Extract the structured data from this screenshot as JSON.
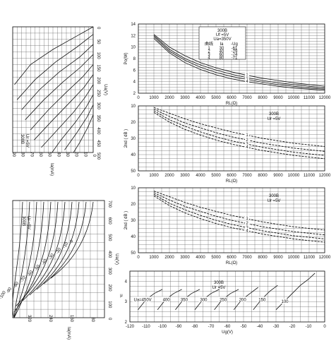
{
  "chart_data": [
    {
      "id": "Ia-Ua-upper",
      "type": "line",
      "title": "",
      "xlabel": "Ua(V)",
      "ylabel": "Ia(mA)",
      "tube_label": [
        "300B",
        "Ur =5V"
      ],
      "x_ticks": [
        "0",
        "50",
        "100",
        "150",
        "200",
        "250",
        "300",
        "350",
        "400",
        "450",
        "500"
      ],
      "y_ticks": [
        "90",
        "80",
        "70",
        "60",
        "50",
        "40",
        "30",
        "20",
        "10",
        "0"
      ],
      "series": [
        {
          "label": "0",
          "points": [
            [
              0,
              0
            ],
            [
              40,
              20
            ],
            [
              90,
              45
            ],
            [
              150,
              70
            ],
            [
              230,
              88
            ]
          ]
        },
        {
          "label": "-10",
          "points": [
            [
              30,
              0
            ],
            [
              80,
              18
            ],
            [
              140,
              42
            ],
            [
              210,
              65
            ],
            [
              290,
              85
            ]
          ]
        },
        {
          "label": "-20",
          "points": [
            [
              70,
              0
            ],
            [
              120,
              15
            ],
            [
              180,
              38
            ],
            [
              250,
              60
            ],
            [
              330,
              80
            ]
          ]
        },
        {
          "label": "-30",
          "points": [
            [
              110,
              0
            ],
            [
              160,
              14
            ],
            [
              220,
              34
            ],
            [
              290,
              55
            ],
            [
              370,
              76
            ]
          ]
        },
        {
          "label": "-40",
          "points": [
            [
              150,
              0
            ],
            [
              200,
              12
            ],
            [
              260,
              30
            ],
            [
              330,
              50
            ],
            [
              410,
              70
            ]
          ]
        },
        {
          "label": "-50",
          "points": [
            [
              190,
              0
            ],
            [
              240,
              10
            ],
            [
              300,
              26
            ],
            [
              370,
              45
            ],
            [
              450,
              66
            ]
          ]
        },
        {
          "label": "-60",
          "points": [
            [
              230,
              0
            ],
            [
              280,
              9
            ],
            [
              340,
              22
            ],
            [
              410,
              40
            ],
            [
              480,
              58
            ]
          ]
        },
        {
          "label": "-70",
          "points": [
            [
              270,
              0
            ],
            [
              320,
              8
            ],
            [
              380,
              20
            ],
            [
              450,
              36
            ],
            [
              500,
              46
            ]
          ]
        },
        {
          "label": "-80",
          "points": [
            [
              310,
              0
            ],
            [
              360,
              7
            ],
            [
              420,
              18
            ],
            [
              490,
              32
            ]
          ]
        },
        {
          "label": "-90",
          "points": [
            [
              350,
              0
            ],
            [
              400,
              6
            ],
            [
              460,
              15
            ],
            [
              500,
              22
            ]
          ]
        }
      ]
    },
    {
      "id": "Ia-Ua-lower",
      "type": "line",
      "title": "",
      "xlabel": "Ua(V)",
      "ylabel": "Ia(mA)",
      "tube_label": [
        "300B",
        "Ur =5V"
      ],
      "x_ticks": [
        "700",
        "600",
        "500",
        "400",
        "300",
        "200",
        "100",
        "0"
      ],
      "y_ticks": [
        "320",
        "240",
        "160",
        "80"
      ],
      "curve_labels": [
        "0",
        "-10",
        "-20",
        "-30",
        "-40",
        "-50",
        "-60",
        "-70",
        "-80",
        "-90",
        "-100"
      ]
    },
    {
      "id": "Pa-RL",
      "type": "line",
      "title": "",
      "xlabel": "RL(Ω)",
      "ylabel": "Po(W)",
      "x_ticks": [
        "0",
        "1000",
        "2000",
        "3000",
        "4000",
        "5000",
        "6000",
        "7000",
        "8000",
        "9000",
        "10000",
        "11000",
        "12000"
      ],
      "y_ticks": [
        "14",
        "12",
        "10",
        "8",
        "6",
        "4",
        "2"
      ],
      "xlim": [
        0,
        12000
      ],
      "ylim": [
        2,
        14
      ],
      "legend": {
        "header": [
          "300B",
          "Uf =5V",
          "Ua=350V"
        ],
        "columns": [
          "曲线",
          "Ia",
          "-Ug"
        ],
        "rows": [
          [
            "1",
            "30",
            "-61"
          ],
          [
            "2",
            "40",
            "-79"
          ],
          [
            "3",
            "60",
            "-74"
          ],
          [
            "4",
            "80",
            "-71"
          ]
        ]
      },
      "series": [
        {
          "name": "1",
          "x": [
            1000,
            2000,
            3000,
            4000,
            5000,
            6000,
            7000,
            8000,
            9000,
            10000,
            11000,
            12000
          ],
          "y": [
            12.2,
            10.0,
            8.5,
            7.3,
            6.4,
            5.7,
            5.1,
            4.6,
            4.2,
            3.8,
            3.5,
            3.2
          ]
        },
        {
          "name": "2",
          "x": [
            1000,
            2000,
            3000,
            4000,
            5000,
            6000,
            7000,
            8000,
            9000,
            10000,
            11000,
            12000
          ],
          "y": [
            12.0,
            9.6,
            8.0,
            6.9,
            6.0,
            5.3,
            4.7,
            4.2,
            3.8,
            3.5,
            3.2,
            2.9
          ]
        },
        {
          "name": "3",
          "x": [
            1000,
            2000,
            3000,
            4000,
            5000,
            6000,
            7000,
            8000,
            9000,
            10000,
            11000,
            12000
          ],
          "y": [
            11.8,
            9.3,
            7.7,
            6.5,
            5.6,
            4.9,
            4.4,
            3.9,
            3.5,
            3.2,
            2.9,
            2.7
          ]
        },
        {
          "name": "4",
          "x": [
            1000,
            2000,
            3000,
            4000,
            5000,
            6000,
            7000,
            8000,
            9000,
            10000,
            11000,
            12000
          ],
          "y": [
            11.5,
            9.0,
            7.3,
            6.1,
            5.2,
            4.5,
            4.0,
            3.6,
            3.2,
            2.9,
            2.7,
            2.5
          ]
        }
      ]
    },
    {
      "id": "2nd-RL-a",
      "type": "line",
      "title": "",
      "xlabel": "RL(Ω)",
      "ylabel": "2nd ( dB )",
      "annotation": [
        "300B",
        "Ur =5V"
      ],
      "x_ticks": [
        "0",
        "1000",
        "2000",
        "3000",
        "4000",
        "5000",
        "6000",
        "7000",
        "8000",
        "9000",
        "10000",
        "11000",
        "12000"
      ],
      "y_ticks": [
        "10",
        "20",
        "30",
        "40",
        "50"
      ],
      "xlim": [
        0,
        12000
      ],
      "ylim": [
        10,
        50
      ],
      "series": [
        {
          "name": "1",
          "x": [
            1000,
            2000,
            3000,
            4000,
            5000,
            6000,
            7000,
            8000,
            9000,
            10000,
            11000,
            12000
          ],
          "y": [
            11,
            14.5,
            18,
            21,
            23.5,
            26,
            28,
            30,
            31.5,
            33,
            34,
            35
          ]
        },
        {
          "name": "2",
          "x": [
            1000,
            2000,
            3000,
            4000,
            5000,
            6000,
            7000,
            8000,
            9000,
            10000,
            11000,
            12000
          ],
          "y": [
            12,
            16.5,
            20.5,
            23.5,
            26.5,
            29,
            31,
            33,
            34.5,
            36,
            37,
            38
          ]
        },
        {
          "name": "3",
          "x": [
            1000,
            2000,
            3000,
            4000,
            5000,
            6000,
            7000,
            8000,
            9000,
            10000,
            11000,
            12000
          ],
          "y": [
            13,
            18.5,
            22.5,
            26,
            29,
            31.5,
            33.5,
            35.5,
            37,
            38.5,
            39.5,
            40.5
          ]
        },
        {
          "name": "4",
          "x": [
            1000,
            2000,
            3000,
            4000,
            5000,
            6000,
            7000,
            8000,
            9000,
            10000,
            11000,
            12000
          ],
          "y": [
            14,
            20,
            24.5,
            28,
            31,
            33.5,
            35.5,
            37.5,
            39,
            40.5,
            41.5,
            42.5
          ]
        }
      ]
    },
    {
      "id": "2nd-RL-b",
      "type": "line",
      "title": "",
      "xlabel": "RL(Ω)",
      "ylabel": "2nd ( dB )",
      "annotation": [
        "300B",
        "Ur =5V"
      ],
      "x_ticks": [
        "0",
        "1000",
        "2000",
        "3000",
        "4000",
        "5000",
        "6000",
        "7000",
        "8000",
        "9000",
        "10000",
        "11000",
        "12000"
      ],
      "y_ticks": [
        "10",
        "20",
        "30",
        "40",
        "50"
      ],
      "xlim": [
        0,
        12000
      ],
      "ylim": [
        10,
        50
      ],
      "series": [
        {
          "name": "1",
          "x": [
            1000,
            2000,
            3000,
            4000,
            5000,
            6000,
            7000,
            8000,
            9000,
            10000,
            11000,
            12000
          ],
          "y": [
            12,
            15.5,
            19,
            22,
            24.5,
            27,
            29,
            31,
            32.5,
            34,
            35,
            36
          ]
        },
        {
          "name": "2",
          "x": [
            1000,
            2000,
            3000,
            4000,
            5000,
            6000,
            7000,
            8000,
            9000,
            10000,
            11000,
            12000
          ],
          "y": [
            13,
            17.5,
            21.5,
            24.5,
            27.5,
            30,
            32,
            34,
            35.5,
            37,
            38,
            39
          ]
        },
        {
          "name": "3",
          "x": [
            1000,
            2000,
            3000,
            4000,
            5000,
            6000,
            7000,
            8000,
            9000,
            10000,
            11000,
            12000
          ],
          "y": [
            14,
            19.5,
            23.5,
            27,
            30,
            32.5,
            34.5,
            36.5,
            38,
            39.5,
            40.5,
            41.5
          ]
        },
        {
          "name": "4",
          "x": [
            1000,
            2000,
            3000,
            4000,
            5000,
            6000,
            7000,
            8000,
            9000,
            10000,
            11000,
            12000
          ],
          "y": [
            15,
            21,
            25.5,
            29,
            32,
            34.5,
            36.5,
            38.5,
            40,
            41.5,
            42.5,
            43.5
          ]
        }
      ]
    },
    {
      "id": "mu-Ug",
      "type": "line",
      "title": "",
      "xlabel": "Ug(V)",
      "ylabel": "μ",
      "annotation": [
        "300B",
        "Ur =5V"
      ],
      "x_ticks": [
        "-120",
        "-110",
        "-100",
        "-90",
        "-80",
        "-70",
        "-60",
        "-50",
        "-40",
        "-30",
        "-20",
        "-10",
        "0"
      ],
      "y_ticks": [
        "4",
        "3",
        "2"
      ],
      "xlim": [
        -120,
        0
      ],
      "ylim": [
        2,
        4.5
      ],
      "series": [
        {
          "name": "Ua=450V",
          "x": [
            -115,
            -110,
            -105,
            -100
          ],
          "y": [
            2.6,
            3.1,
            3.4,
            3.6
          ]
        },
        {
          "name": "400",
          "x": [
            -103,
            -98,
            -93,
            -88
          ],
          "y": [
            2.6,
            3.1,
            3.4,
            3.6
          ]
        },
        {
          "name": "350",
          "x": [
            -92,
            -87,
            -82,
            -77
          ],
          "y": [
            2.6,
            3.1,
            3.4,
            3.6
          ]
        },
        {
          "name": "300",
          "x": [
            -80,
            -75,
            -70,
            -65
          ],
          "y": [
            2.6,
            3.1,
            3.4,
            3.6
          ]
        },
        {
          "name": "250",
          "x": [
            -68,
            -63,
            -58,
            -53
          ],
          "y": [
            2.6,
            3.1,
            3.4,
            3.6
          ]
        },
        {
          "name": "200",
          "x": [
            -56,
            -51,
            -46,
            -41
          ],
          "y": [
            2.6,
            3.1,
            3.4,
            3.7
          ]
        },
        {
          "name": "150",
          "x": [
            -44,
            -39,
            -34,
            -29
          ],
          "y": [
            2.6,
            3.1,
            3.5,
            3.8
          ]
        },
        {
          "name": "100",
          "x": [
            -30,
            -25,
            -20,
            -15,
            -10,
            -6
          ],
          "y": [
            2.6,
            3.0,
            3.4,
            3.8,
            4.1,
            4.4
          ]
        }
      ]
    }
  ]
}
